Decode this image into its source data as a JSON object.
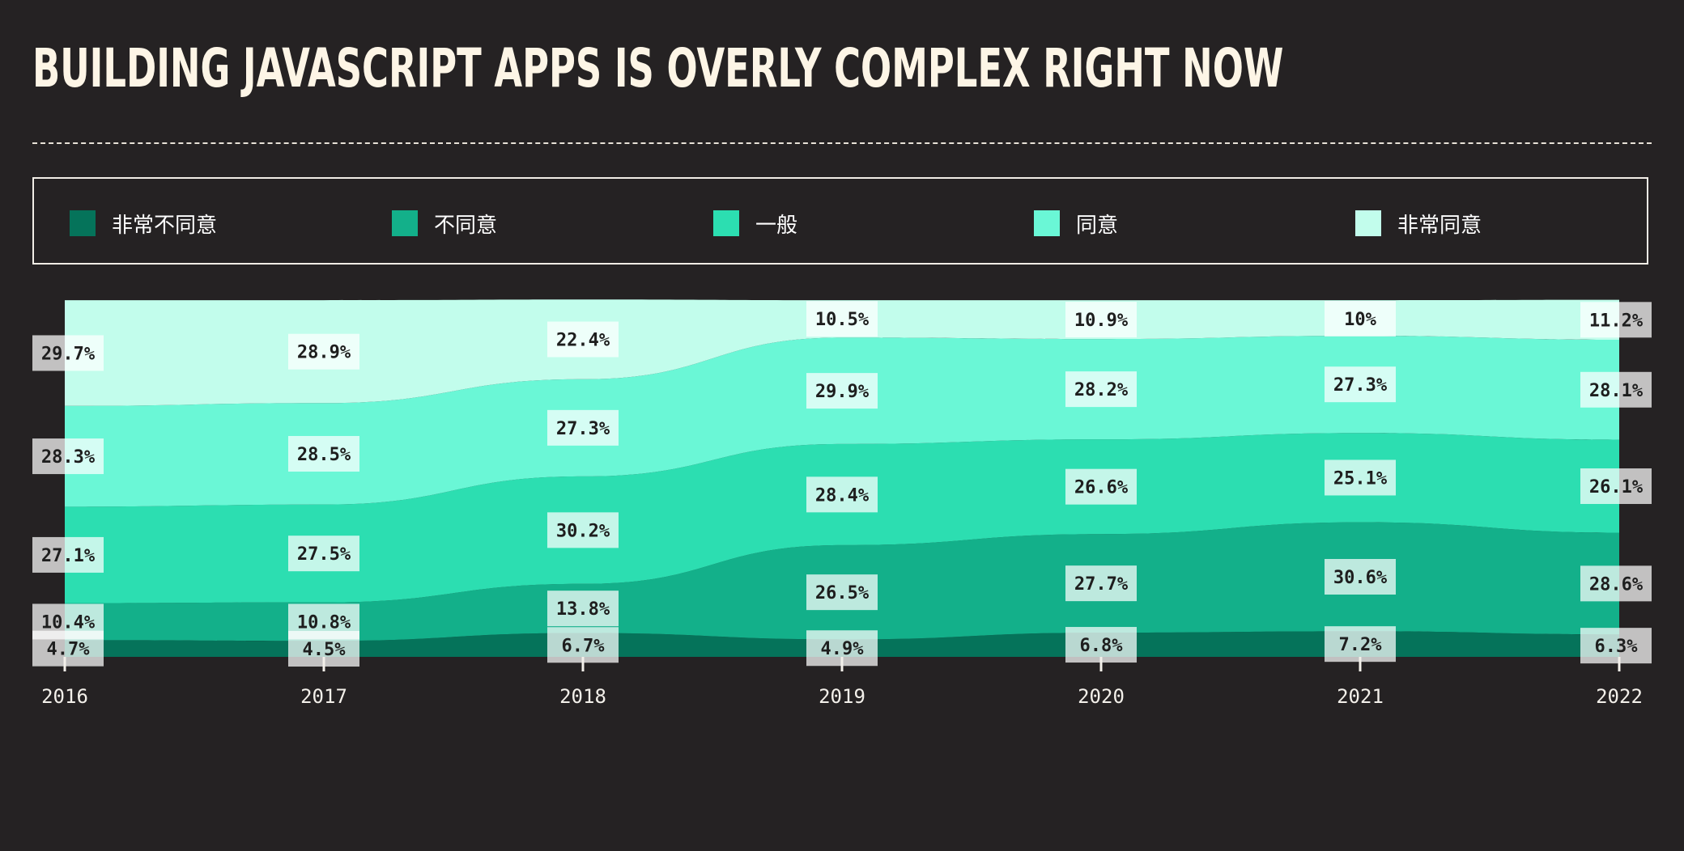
{
  "chart_data": {
    "type": "area",
    "stacked": true,
    "normalized": true,
    "title": "BUILDING JAVASCRIPT APPS IS OVERLY COMPLEX RIGHT NOW",
    "x": [
      "2016",
      "2017",
      "2018",
      "2019",
      "2020",
      "2021",
      "2022"
    ],
    "series": [
      {
        "name": "非常不同意",
        "color": "#05735a",
        "values": [
          4.7,
          4.5,
          6.7,
          4.9,
          6.8,
          7.2,
          6.3
        ],
        "labels": [
          "4.7%",
          "4.5%",
          "6.7%",
          "4.9%",
          "6.8%",
          "7.2%",
          "6.3%"
        ]
      },
      {
        "name": "不同意",
        "color": "#13b08a",
        "values": [
          10.4,
          10.8,
          13.8,
          26.5,
          27.7,
          30.6,
          28.6
        ],
        "labels": [
          "10.4%",
          "10.8%",
          "13.8%",
          "26.5%",
          "27.7%",
          "30.6%",
          "28.6%"
        ]
      },
      {
        "name": "一般",
        "color": "#2cdeb1",
        "values": [
          27.1,
          27.5,
          30.2,
          28.4,
          26.6,
          25.1,
          26.1
        ],
        "labels": [
          "27.1%",
          "27.5%",
          "30.2%",
          "28.4%",
          "26.6%",
          "25.1%",
          "26.1%"
        ]
      },
      {
        "name": "同意",
        "color": "#6af7d6",
        "values": [
          28.3,
          28.5,
          27.3,
          29.9,
          28.2,
          27.3,
          28.1
        ],
        "labels": [
          "28.3%",
          "28.5%",
          "27.3%",
          "29.9%",
          "28.2%",
          "27.3%",
          "28.1%"
        ]
      },
      {
        "name": "非常同意",
        "color": "#c2fdec",
        "values": [
          29.7,
          28.9,
          22.4,
          10.5,
          10.9,
          10,
          11.2
        ],
        "labels": [
          "29.7%",
          "28.9%",
          "22.4%",
          "10.5%",
          "10.9%",
          "10%",
          "11.2%"
        ]
      }
    ],
    "ylim": [
      0,
      100
    ],
    "legend": "top",
    "grid": false
  },
  "colors": {
    "background": "#252223",
    "title": "#fdf5e6"
  }
}
